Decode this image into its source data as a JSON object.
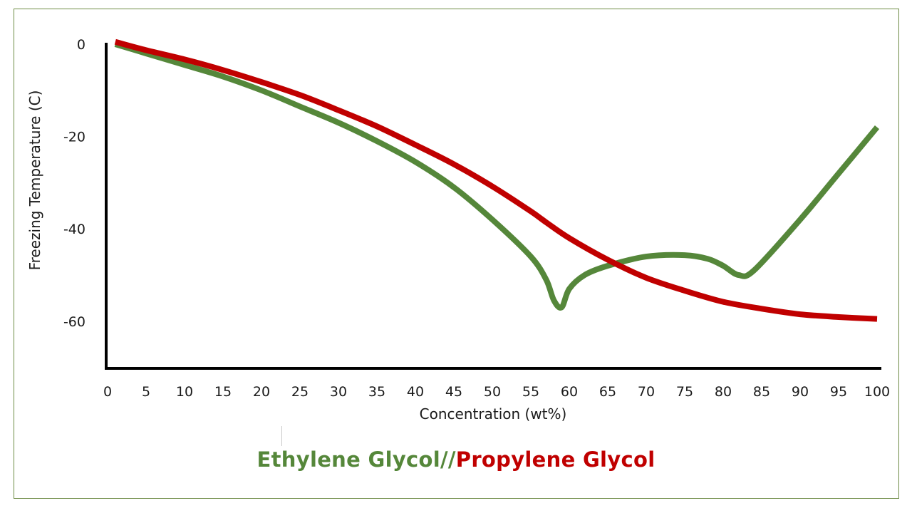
{
  "chart_data": {
    "type": "line",
    "xlabel": "Concentration (wt%)",
    "ylabel": "Freezing Temperature (C)",
    "xlim": [
      0,
      100
    ],
    "ylim": [
      -70,
      0
    ],
    "x_ticks": [
      "0",
      "5",
      "10",
      "15",
      "20",
      "25",
      "30",
      "35",
      "40",
      "45",
      "50",
      "55",
      "60",
      "65",
      "70",
      "75",
      "80",
      "85",
      "90",
      "95",
      "100"
    ],
    "y_ticks": [
      "0",
      "-20",
      "-40",
      "-60"
    ],
    "y_tick_values": [
      0,
      -20,
      -40,
      -60
    ],
    "series": [
      {
        "name": "Ethylene Glycol",
        "color": "#55873a",
        "x": [
          1,
          5,
          10,
          15,
          20,
          25,
          30,
          35,
          40,
          45,
          50,
          55,
          57,
          58,
          59,
          60,
          62,
          65,
          70,
          75,
          78,
          80,
          82,
          84,
          90,
          95,
          100
        ],
        "y": [
          0,
          -2,
          -4.5,
          -7,
          -10,
          -13.5,
          -17,
          -21,
          -25.5,
          -31,
          -38,
          -46,
          -51,
          -55.5,
          -57,
          -53,
          -50,
          -48,
          -46,
          -45.7,
          -46.5,
          -48,
          -50,
          -49,
          -38,
          -28,
          -18
        ]
      },
      {
        "name": "Propylene Glycol",
        "color": "#c00000",
        "x": [
          1,
          5,
          10,
          15,
          20,
          25,
          30,
          35,
          40,
          45,
          50,
          55,
          57,
          60,
          65,
          70,
          75,
          80,
          85,
          90,
          95,
          100
        ],
        "y": [
          0.5,
          -1.3,
          -3.3,
          -5.6,
          -8.2,
          -11,
          -14.3,
          -17.8,
          -21.8,
          -26,
          -30.8,
          -36.2,
          -38.6,
          -42,
          -46.7,
          -50.6,
          -53.4,
          -55.8,
          -57.3,
          -58.5,
          -59.1,
          -59.5
        ]
      }
    ]
  },
  "legend": {
    "ethylene_label": "Ethylene Glycol",
    "separator": "//",
    "propylene_label": "Propylene Glycol"
  }
}
